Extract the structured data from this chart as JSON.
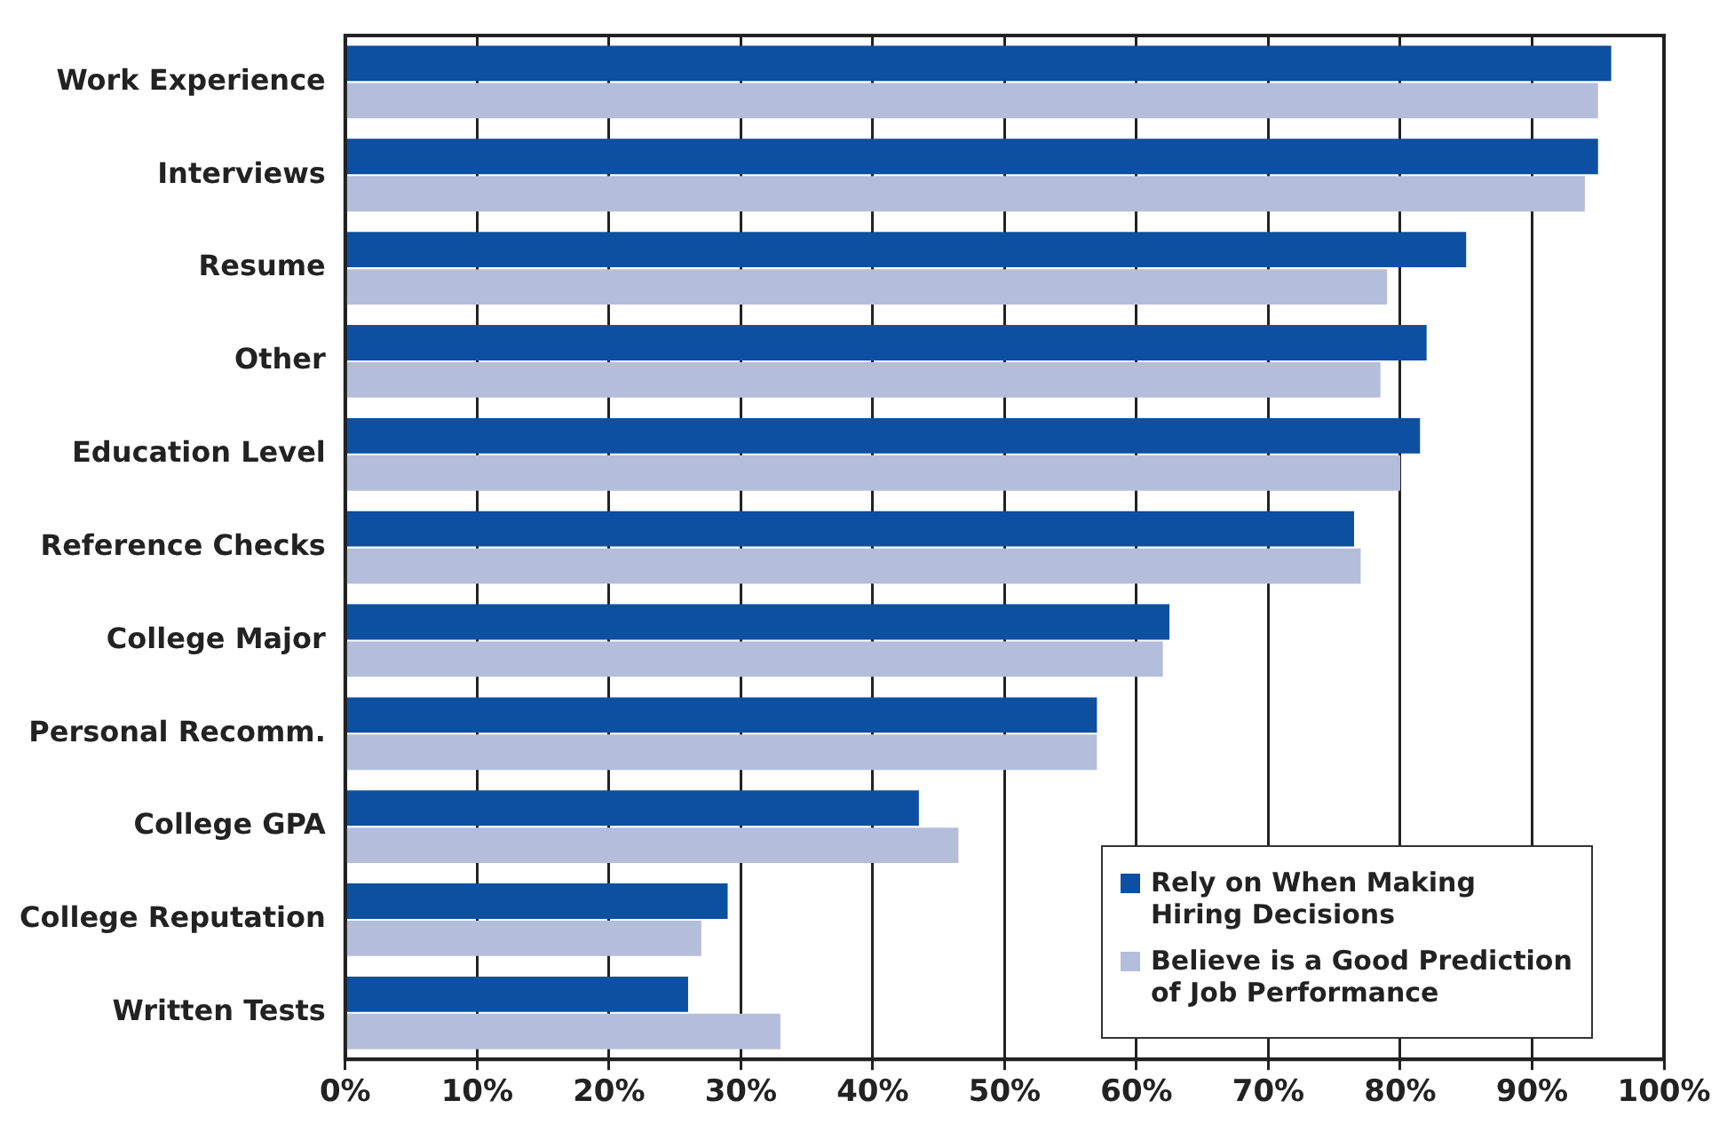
{
  "chart_data": {
    "type": "bar",
    "orientation": "horizontal",
    "categories": [
      "Work Experience",
      "Interviews",
      "Resume",
      "Other",
      "Education Level",
      "Reference Checks",
      "College Major",
      "Personal Recomm.",
      "College GPA",
      "College Reputation",
      "Written Tests"
    ],
    "series": [
      {
        "name": "Rely on When Making Hiring Decisions",
        "color": "#0d4fa0",
        "values": [
          96,
          95,
          85,
          82,
          81.5,
          76.5,
          62.5,
          57,
          43.5,
          29,
          26
        ]
      },
      {
        "name": "Believe is a Good Prediction of Job Performance",
        "color": "#b4bedb",
        "values": [
          95,
          94,
          79,
          78.5,
          80,
          77,
          62,
          57,
          46.5,
          27,
          33
        ]
      }
    ],
    "xlim": [
      0,
      100
    ],
    "xticks": [
      {
        "value": 0,
        "label": "0%"
      },
      {
        "value": 10,
        "label": "10%"
      },
      {
        "value": 20,
        "label": "20%"
      },
      {
        "value": 30,
        "label": "30%"
      },
      {
        "value": 40,
        "label": "40%"
      },
      {
        "value": 50,
        "label": "50%"
      },
      {
        "value": 60,
        "label": "60%"
      },
      {
        "value": 70,
        "label": "70%"
      },
      {
        "value": 80,
        "label": "80%"
      },
      {
        "value": 90,
        "label": "90%"
      },
      {
        "value": 100,
        "label": "100%"
      }
    ],
    "grid": "x",
    "legend": "bottom right"
  }
}
